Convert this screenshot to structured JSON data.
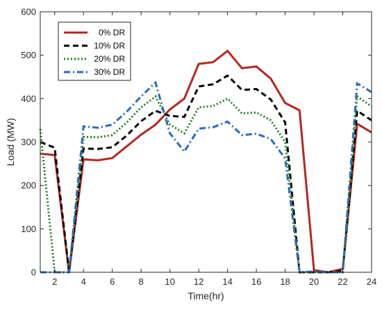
{
  "chart_data": {
    "type": "line",
    "title": "",
    "xlabel": "Time(hr)",
    "ylabel": "Load (MW)",
    "xlim": [
      1,
      24
    ],
    "ylim": [
      0,
      600
    ],
    "xticks": [
      2,
      4,
      6,
      8,
      10,
      12,
      14,
      16,
      18,
      20,
      22,
      24
    ],
    "yticks": [
      0,
      100,
      200,
      300,
      400,
      500,
      600
    ],
    "grid": false,
    "legend_position": "top-left",
    "x": [
      1,
      2,
      3,
      4,
      5,
      6,
      7,
      8,
      9,
      10,
      11,
      12,
      13,
      14,
      15,
      16,
      17,
      18,
      19,
      20,
      21,
      22,
      23,
      24
    ],
    "series": [
      {
        "name": "0% DR",
        "color": "#b5261e",
        "dash": "solid",
        "values": [
          273,
          270,
          0,
          260,
          258,
          263,
          290,
          317,
          340,
          375,
          400,
          480,
          484,
          510,
          470,
          474,
          446,
          390,
          373,
          5,
          0,
          8,
          342,
          322
        ]
      },
      {
        "name": "10% DR",
        "color": "#000000",
        "dash": "dash",
        "values": [
          300,
          287,
          0,
          285,
          284,
          288,
          315,
          348,
          372,
          360,
          358,
          428,
          433,
          453,
          420,
          422,
          398,
          345,
          0,
          0,
          0,
          3,
          372,
          350
        ]
      },
      {
        "name": "20% DR",
        "color": "#1e7d1e",
        "dash": "dot",
        "values": [
          330,
          0,
          0,
          312,
          311,
          316,
          345,
          380,
          405,
          340,
          320,
          380,
          383,
          400,
          366,
          368,
          350,
          300,
          0,
          0,
          0,
          0,
          405,
          382
        ]
      },
      {
        "name": "30% DR",
        "color": "#2a6ac0",
        "dash": "dashdot",
        "values": [
          0,
          0,
          0,
          336,
          333,
          340,
          370,
          405,
          437,
          320,
          278,
          331,
          334,
          347,
          316,
          319,
          307,
          262,
          0,
          2,
          0,
          0,
          435,
          415
        ]
      }
    ]
  }
}
